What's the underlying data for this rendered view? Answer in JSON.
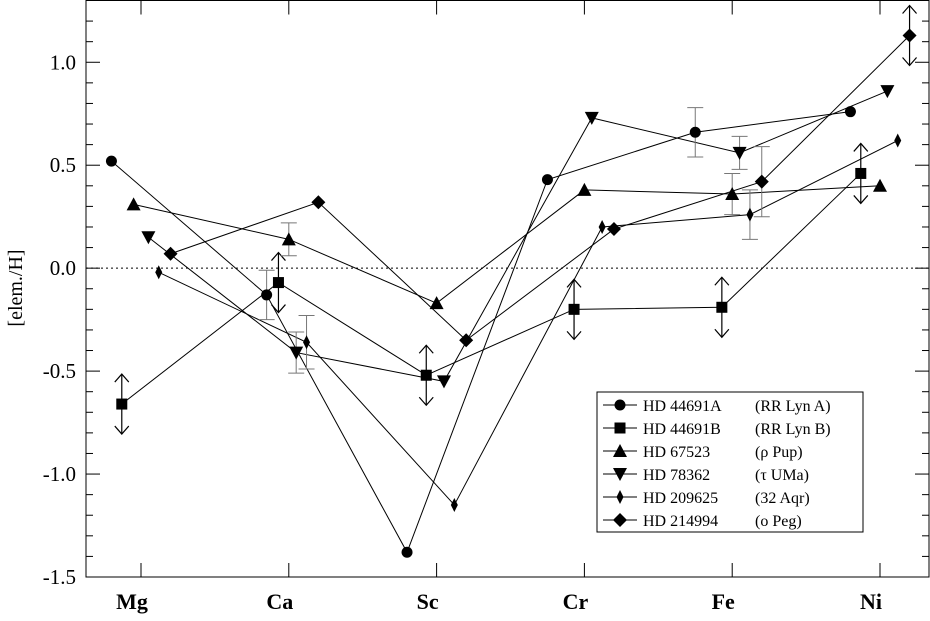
{
  "chart_data": {
    "type": "scatter",
    "ylabel": "[elem./H]",
    "xlabel": "",
    "categories": [
      "Mg",
      "Ca",
      "Sc",
      "Cr",
      "Fe",
      "Ni"
    ],
    "ylim": [
      -1.5,
      1.3
    ],
    "yticks": [
      "1.0",
      "0.5",
      "0.0",
      "-0.5",
      "-1.0",
      "-1.5"
    ],
    "reference_line": {
      "y": 0.0,
      "style": "dotted"
    },
    "legend_position": "bottom-right",
    "series": [
      {
        "name": "HD 44691A",
        "alias": "(RR Lyn A)",
        "marker": "circle",
        "points": [
          {
            "x": -0.2,
            "y": 0.52
          },
          {
            "x": 0.85,
            "y": -0.13,
            "err": 0.12
          },
          {
            "x": 1.8,
            "y": -1.38
          },
          {
            "x": 2.75,
            "y": 0.43
          },
          {
            "x": 3.75,
            "y": 0.66,
            "err": 0.12
          },
          {
            "x": 4.8,
            "y": 0.76
          }
        ]
      },
      {
        "name": "HD 44691B",
        "alias": "(RR Lyn B)",
        "marker": "square",
        "points": [
          {
            "x": -0.13,
            "y": -0.66,
            "limit": "both"
          },
          {
            "x": 0.93,
            "y": -0.07,
            "limit": "both"
          },
          {
            "x": 1.93,
            "y": -0.52,
            "limit": "both"
          },
          {
            "x": 2.93,
            "y": -0.2,
            "limit": "both"
          },
          {
            "x": 3.93,
            "y": -0.19,
            "limit": "both"
          },
          {
            "x": 4.87,
            "y": 0.46,
            "limit": "both"
          }
        ]
      },
      {
        "name": "HD 67523",
        "alias": "(ρ Pup)",
        "marker": "triangle-up",
        "points": [
          {
            "x": -0.05,
            "y": 0.31
          },
          {
            "x": 1.0,
            "y": 0.14,
            "err": 0.08
          },
          {
            "x": 2.0,
            "y": -0.17
          },
          {
            "x": 3.0,
            "y": 0.38
          },
          {
            "x": 4.0,
            "y": 0.36,
            "err": 0.1
          },
          {
            "x": 5.0,
            "y": 0.4
          }
        ]
      },
      {
        "name": "HD 78362",
        "alias": "(τ UMa)",
        "marker": "triangle-down",
        "points": [
          {
            "x": 0.05,
            "y": 0.15
          },
          {
            "x": 1.05,
            "y": -0.41,
            "err": 0.1
          },
          {
            "x": 2.05,
            "y": -0.55
          },
          {
            "x": 3.05,
            "y": 0.73
          },
          {
            "x": 4.05,
            "y": 0.56,
            "err": 0.08
          },
          {
            "x": 5.05,
            "y": 0.86
          }
        ]
      },
      {
        "name": "HD 209625",
        "alias": "(32 Aqr)",
        "marker": "thin-diamond",
        "points": [
          {
            "x": 0.12,
            "y": -0.02
          },
          {
            "x": 1.12,
            "y": -0.36,
            "err": 0.13
          },
          {
            "x": 2.12,
            "y": -1.15
          },
          {
            "x": 3.12,
            "y": 0.2
          },
          {
            "x": 4.12,
            "y": 0.26,
            "err": 0.12
          },
          {
            "x": 5.12,
            "y": 0.62
          }
        ]
      },
      {
        "name": "HD 214994",
        "alias": "(o Peg)",
        "marker": "diamond",
        "points": [
          {
            "x": 0.2,
            "y": 0.07
          },
          {
            "x": 1.2,
            "y": 0.32
          },
          {
            "x": 2.2,
            "y": -0.35
          },
          {
            "x": 3.2,
            "y": 0.19
          },
          {
            "x": 4.2,
            "y": 0.42,
            "err": 0.17
          },
          {
            "x": 5.2,
            "y": 1.13,
            "limit": "both"
          }
        ]
      }
    ]
  }
}
